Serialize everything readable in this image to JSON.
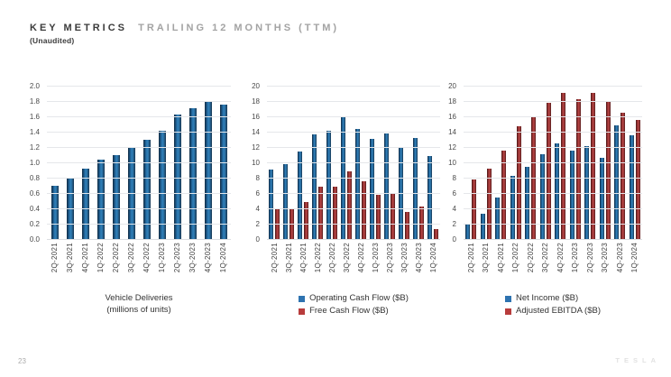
{
  "header": {
    "title_primary": "KEY METRICS",
    "title_secondary": "TRAILING 12 MONTHS (TTM)",
    "subtitle": "(Unaudited)"
  },
  "footer": {
    "page_number": "23",
    "brand": "TESLA"
  },
  "colors": {
    "bar_blue": "#2e7cb4",
    "bar_red": "#b24242",
    "legend_blue": "#2e73b0",
    "legend_red": "#b83c3c",
    "gridline": "#e5e7ea",
    "title_dark": "#3b3b3b",
    "title_gray": "#a3a3a3"
  },
  "chart_data": [
    {
      "type": "bar",
      "title": "Vehicle Deliveries (millions of units)",
      "caption_lines": [
        "Vehicle Deliveries",
        "(millions of units)"
      ],
      "categories": [
        "2Q-2021",
        "3Q-2021",
        "4Q-2021",
        "1Q-2022",
        "2Q-2022",
        "3Q-2022",
        "4Q-2022",
        "1Q-2023",
        "2Q-2023",
        "3Q-2023",
        "4Q-2023",
        "1Q-2024"
      ],
      "series": [
        {
          "name": "Vehicle Deliveries",
          "color_class": "blue",
          "values": [
            0.71,
            0.81,
            0.93,
            1.05,
            1.11,
            1.21,
            1.31,
            1.42,
            1.64,
            1.72,
            1.8,
            1.77
          ]
        }
      ],
      "xlabel": "",
      "ylabel": "",
      "ylim": [
        0,
        2.0
      ],
      "yticks": [
        "0.0",
        "0.2",
        "0.4",
        "0.6",
        "0.8",
        "1.0",
        "1.2",
        "1.4",
        "1.6",
        "1.8",
        "2.0"
      ],
      "grid": true,
      "legend_position": "none"
    },
    {
      "type": "bar",
      "title": "Operating Cash Flow / Free Cash Flow ($B)",
      "categories": [
        "2Q-2021",
        "3Q-2021",
        "4Q-2021",
        "1Q-2022",
        "2Q-2022",
        "3Q-2022",
        "4Q-2022",
        "1Q-2023",
        "2Q-2023",
        "3Q-2023",
        "4Q-2023",
        "1Q-2024"
      ],
      "series": [
        {
          "name": "Operating Cash Flow ($B)",
          "color_class": "blue",
          "values": [
            9.2,
            9.9,
            11.5,
            13.8,
            14.2,
            16.0,
            14.5,
            13.2,
            13.9,
            12.1,
            13.3,
            11.0
          ]
        },
        {
          "name": "Free Cash Flow ($B)",
          "color_class": "red",
          "values": [
            4.1,
            4.0,
            5.0,
            7.0,
            7.0,
            8.9,
            7.6,
            5.9,
            6.1,
            3.7,
            4.4,
            1.4
          ]
        }
      ],
      "xlabel": "",
      "ylabel": "",
      "ylim": [
        0,
        20
      ],
      "yticks": [
        "0",
        "2",
        "4",
        "6",
        "8",
        "10",
        "12",
        "14",
        "16",
        "18",
        "20"
      ],
      "grid": true,
      "legend_position": "bottom"
    },
    {
      "type": "bar",
      "title": "Net Income / Adjusted EBITDA ($B)",
      "categories": [
        "2Q-2021",
        "3Q-2021",
        "4Q-2021",
        "1Q-2022",
        "2Q-2022",
        "3Q-2022",
        "4Q-2022",
        "1Q-2023",
        "2Q-2023",
        "3Q-2023",
        "4Q-2023",
        "1Q-2024"
      ],
      "series": [
        {
          "name": "Net Income ($B)",
          "color_class": "blue",
          "values": [
            2.1,
            3.4,
            5.5,
            8.4,
            9.5,
            11.2,
            12.6,
            11.7,
            12.2,
            10.7,
            15.0,
            13.6
          ]
        },
        {
          "name": "Adjusted EBITDA ($B)",
          "color_class": "red",
          "values": [
            7.9,
            9.3,
            11.6,
            14.8,
            16.1,
            17.9,
            19.2,
            18.4,
            19.2,
            18.1,
            16.6,
            15.7
          ]
        }
      ],
      "xlabel": "",
      "ylabel": "",
      "ylim": [
        0,
        20
      ],
      "yticks": [
        "0",
        "2",
        "4",
        "6",
        "8",
        "10",
        "12",
        "14",
        "16",
        "18",
        "20"
      ],
      "grid": true,
      "legend_position": "bottom"
    }
  ]
}
